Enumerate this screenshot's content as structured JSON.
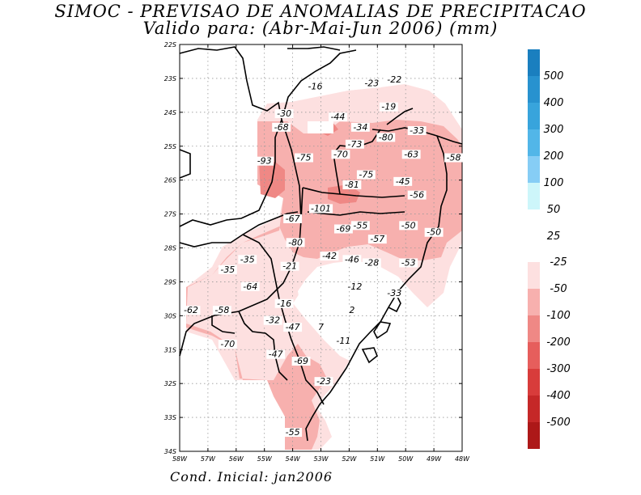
{
  "title_line1": "SIMOC - PREVISAO DE ANOMALIAS DE PRECIPITACAO",
  "title_line2": "Valido para: (Abr-Mai-Jun 2006) (mm)",
  "footer": "Cond. Inicial: jan2006",
  "axes": {
    "lat_labels": [
      "22S",
      "23S",
      "24S",
      "25S",
      "26S",
      "27S",
      "28S",
      "29S",
      "30S",
      "31S",
      "32S",
      "33S",
      "34S"
    ],
    "lon_labels": [
      "58W",
      "57W",
      "56W",
      "55W",
      "54W",
      "53W",
      "52W",
      "51W",
      "50W",
      "49W",
      "48W"
    ]
  },
  "legend_positive": [
    {
      "label": "500",
      "color": "#1a7fbf"
    },
    {
      "label": "400",
      "color": "#2892cf"
    },
    {
      "label": "300",
      "color": "#38a4dc"
    },
    {
      "label": "200",
      "color": "#52b6e8"
    },
    {
      "label": "100",
      "color": "#86cdf5"
    },
    {
      "label": "50",
      "color": "#cdf6fa"
    },
    {
      "label": "25",
      "color": ""
    }
  ],
  "legend_negative": [
    {
      "label": "-25",
      "color": "#fde0e0"
    },
    {
      "label": "-50",
      "color": "#f7b0ae"
    },
    {
      "label": "-100",
      "color": "#ef8885"
    },
    {
      "label": "-200",
      "color": "#e65e5c"
    },
    {
      "label": "-300",
      "color": "#d83c3b"
    },
    {
      "label": "-400",
      "color": "#c52828"
    },
    {
      "label": "-500",
      "color": "#ad1818"
    }
  ],
  "values": [
    {
      "v": "-16",
      "lon": -53.2,
      "lat": -23.3
    },
    {
      "v": "-23",
      "lon": -51.2,
      "lat": -23.2
    },
    {
      "v": "-22",
      "lon": -50.4,
      "lat": -23.1
    },
    {
      "v": "-19",
      "lon": -50.6,
      "lat": -23.9
    },
    {
      "v": "-30",
      "lon": -54.3,
      "lat": -24.1
    },
    {
      "v": "-44",
      "lon": -52.4,
      "lat": -24.2
    },
    {
      "v": "-68",
      "lon": -54.4,
      "lat": -24.5
    },
    {
      "v": "-34",
      "lon": -51.6,
      "lat": -24.5
    },
    {
      "v": "-33",
      "lon": -49.6,
      "lat": -24.6
    },
    {
      "v": "-80",
      "lon": -50.7,
      "lat": -24.8
    },
    {
      "v": "-73",
      "lon": -51.8,
      "lat": -25.0
    },
    {
      "v": "-63",
      "lon": -49.8,
      "lat": -25.3
    },
    {
      "v": "-58",
      "lon": -48.3,
      "lat": -25.4
    },
    {
      "v": "-75",
      "lon": -53.6,
      "lat": -25.4
    },
    {
      "v": "-70",
      "lon": -52.3,
      "lat": -25.3
    },
    {
      "v": "-93",
      "lon": -55.0,
      "lat": -25.5
    },
    {
      "v": "-75",
      "lon": -51.4,
      "lat": -25.9
    },
    {
      "v": "-45",
      "lon": -50.1,
      "lat": -26.1
    },
    {
      "v": "-81",
      "lon": -51.9,
      "lat": -26.2
    },
    {
      "v": "-56",
      "lon": -49.6,
      "lat": -26.5
    },
    {
      "v": "-101",
      "lon": -53.0,
      "lat": -26.9
    },
    {
      "v": "-67",
      "lon": -54.0,
      "lat": -27.2
    },
    {
      "v": "-69",
      "lon": -52.2,
      "lat": -27.5
    },
    {
      "v": "-55",
      "lon": -51.6,
      "lat": -27.4
    },
    {
      "v": "-50",
      "lon": -49.9,
      "lat": -27.4
    },
    {
      "v": "-50",
      "lon": -49.0,
      "lat": -27.6
    },
    {
      "v": "-57",
      "lon": -51.0,
      "lat": -27.8
    },
    {
      "v": "-80",
      "lon": -53.9,
      "lat": -27.9
    },
    {
      "v": "-42",
      "lon": -52.7,
      "lat": -28.3
    },
    {
      "v": "-46",
      "lon": -51.9,
      "lat": -28.4
    },
    {
      "v": "-28",
      "lon": -51.2,
      "lat": -28.5
    },
    {
      "v": "-53",
      "lon": -49.9,
      "lat": -28.5
    },
    {
      "v": "-35",
      "lon": -55.6,
      "lat": -28.4
    },
    {
      "v": "-21",
      "lon": -54.1,
      "lat": -28.6
    },
    {
      "v": "-35",
      "lon": -56.3,
      "lat": -28.7
    },
    {
      "v": "-64",
      "lon": -55.5,
      "lat": -29.2
    },
    {
      "v": "-12",
      "lon": -51.8,
      "lat": -29.2
    },
    {
      "v": "-33",
      "lon": -50.4,
      "lat": -29.4
    },
    {
      "v": "-16",
      "lon": -54.3,
      "lat": -29.7
    },
    {
      "v": "-62",
      "lon": -57.6,
      "lat": -29.9
    },
    {
      "v": "-58",
      "lon": -56.5,
      "lat": -29.9
    },
    {
      "v": "2",
      "lon": -51.9,
      "lat": -29.9
    },
    {
      "v": "-32",
      "lon": -54.7,
      "lat": -30.2
    },
    {
      "v": "-47",
      "lon": -54.0,
      "lat": -30.4
    },
    {
      "v": "7",
      "lon": -53.0,
      "lat": -30.4
    },
    {
      "v": "-11",
      "lon": -52.2,
      "lat": -30.8
    },
    {
      "v": "-70",
      "lon": -56.3,
      "lat": -30.9
    },
    {
      "v": "-47",
      "lon": -54.6,
      "lat": -31.2
    },
    {
      "v": "-69",
      "lon": -53.7,
      "lat": -31.4
    },
    {
      "v": "-23",
      "lon": -52.9,
      "lat": -32.0
    },
    {
      "v": "-55",
      "lon": -54.0,
      "lat": -33.5
    }
  ]
}
